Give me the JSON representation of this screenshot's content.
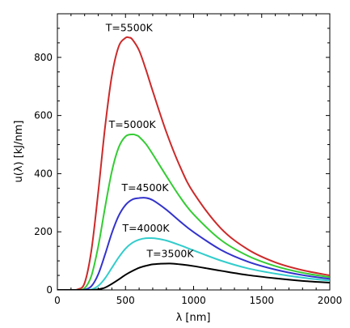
{
  "chart_data": {
    "type": "line",
    "title": "",
    "xlabel": "λ [nm]",
    "ylabel": "u(λ) [kJ/nm]",
    "xlim": [
      0,
      2000
    ],
    "ylim": [
      0,
      950
    ],
    "grid": false,
    "x_ticks": [
      0,
      500,
      1000,
      1500,
      2000
    ],
    "y_ticks": [
      0,
      200,
      400,
      600,
      800
    ],
    "series": [
      {
        "name": "T=5500K",
        "color": "#cc2a2a",
        "x": [
          0,
          100,
          150,
          200,
          250,
          300,
          350,
          400,
          450,
          500,
          527,
          550,
          600,
          650,
          700,
          800,
          900,
          1000,
          1200,
          1400,
          1600,
          1800,
          2000
        ],
        "y": [
          0,
          0,
          2,
          24,
          137,
          337,
          560,
          737,
          837,
          867,
          868,
          862,
          824,
          758,
          684,
          543,
          425,
          334,
          212,
          139,
          95,
          68,
          50
        ]
      },
      {
        "name": "T=5000K",
        "color": "#33cc33",
        "x": [
          0,
          100,
          150,
          200,
          250,
          300,
          350,
          400,
          450,
          500,
          550,
          580,
          600,
          650,
          700,
          800,
          900,
          1000,
          1200,
          1400,
          1600,
          1800,
          2000
        ],
        "y": [
          0,
          0,
          0,
          6,
          49,
          150,
          284,
          408,
          490,
          528,
          535,
          532,
          527,
          502,
          467,
          392,
          320,
          260,
          172,
          117,
          82,
          59,
          44
        ]
      },
      {
        "name": "T=4500K",
        "color": "#3333cc",
        "x": [
          0,
          150,
          200,
          250,
          300,
          350,
          400,
          450,
          500,
          550,
          600,
          644,
          700,
          800,
          900,
          1000,
          1200,
          1400,
          1600,
          1800,
          2000
        ],
        "y": [
          0,
          0,
          1,
          13,
          54,
          122,
          196,
          255,
          292,
          311,
          316,
          317,
          309,
          276,
          236,
          199,
          138,
          97,
          70,
          51,
          38
        ]
      },
      {
        "name": "T=4000K",
        "color": "#33cccc",
        "x": [
          0,
          200,
          250,
          300,
          350,
          400,
          450,
          500,
          550,
          600,
          650,
          700,
          725,
          800,
          900,
          1000,
          1200,
          1400,
          1600,
          1800,
          2000
        ],
        "y": [
          0,
          0,
          2,
          14,
          40,
          76,
          112,
          142,
          162,
          173,
          178,
          178,
          177,
          170,
          154,
          136,
          101,
          74,
          56,
          42,
          32
        ]
      },
      {
        "name": "T=3500K",
        "color": "#000000",
        "x": [
          0,
          200,
          250,
          300,
          350,
          400,
          450,
          500,
          550,
          600,
          650,
          700,
          750,
          828,
          900,
          1000,
          1200,
          1400,
          1600,
          1800,
          2000
        ],
        "y": [
          0,
          0,
          0,
          2,
          8,
          21,
          36,
          52,
          65,
          76,
          83,
          88,
          90,
          91,
          88,
          82,
          66,
          51,
          40,
          31,
          25
        ]
      }
    ]
  }
}
